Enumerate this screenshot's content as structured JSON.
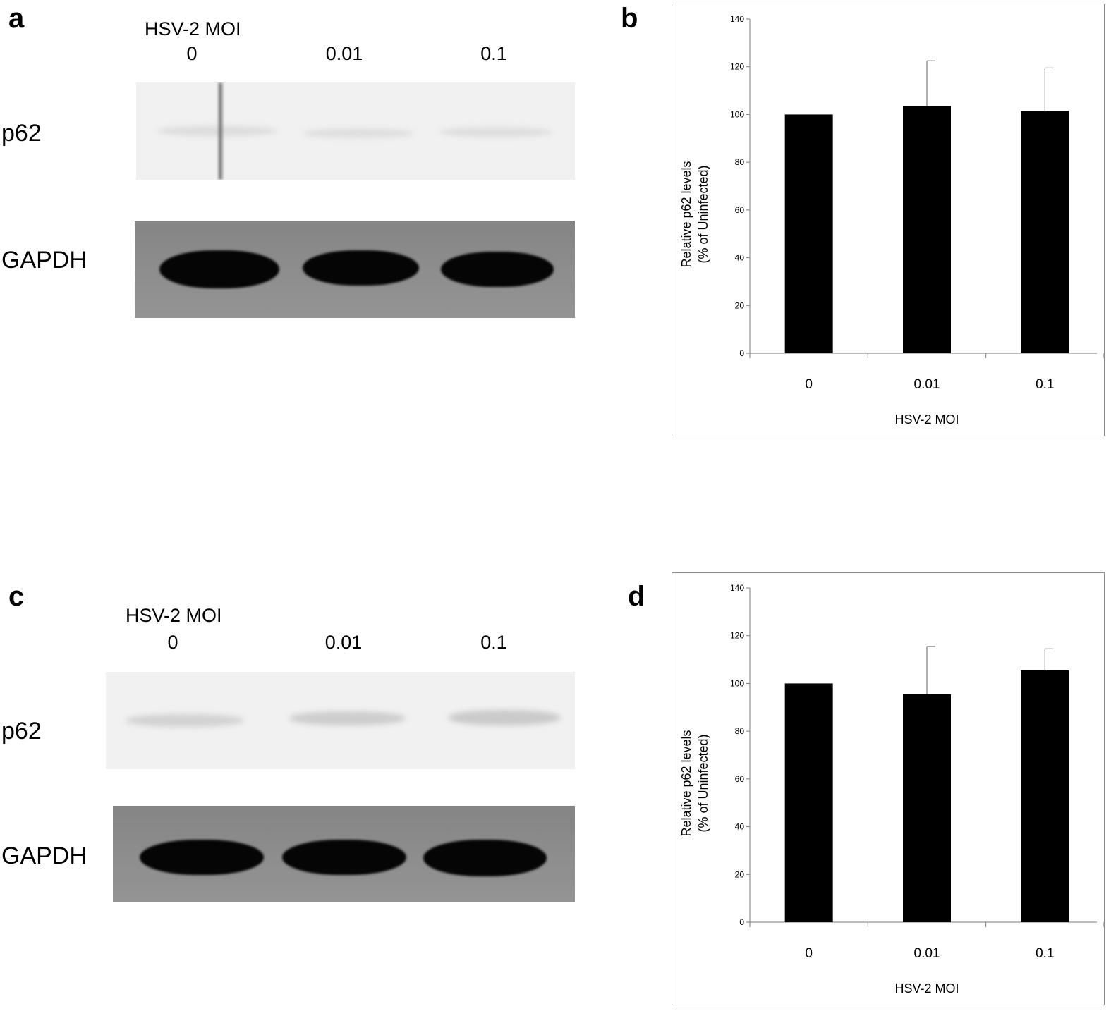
{
  "panels": {
    "a": {
      "letter": "a"
    },
    "b": {
      "letter": "b"
    },
    "c": {
      "letter": "c"
    },
    "d": {
      "letter": "d"
    }
  },
  "blot_a": {
    "header": "HSV-2 MOI",
    "lanes": [
      "0",
      "0.01",
      "0.1"
    ],
    "rows": [
      "p62",
      "GAPDH"
    ]
  },
  "blot_c": {
    "header": "HSV-2 MOI",
    "lanes": [
      "0",
      "0.01",
      "0.1"
    ],
    "rows": [
      "p62",
      "GAPDH"
    ]
  },
  "chart_data": [
    {
      "panel": "b",
      "type": "bar",
      "categories": [
        "0",
        "0.01",
        "0.1"
      ],
      "values": [
        100,
        103.5,
        101.5
      ],
      "error_upper": [
        0,
        19,
        18
      ],
      "ylabel_line1": "Relative p62 levels",
      "ylabel_line2": "(% of Uninfected)",
      "xlabel": "HSV-2 MOI",
      "ylim": [
        0,
        140
      ],
      "yticks": [
        0,
        20,
        40,
        60,
        80,
        100,
        120,
        140
      ],
      "grid": false,
      "bar_color": "#000000"
    },
    {
      "panel": "d",
      "type": "bar",
      "categories": [
        "0",
        "0.01",
        "0.1"
      ],
      "values": [
        100,
        95.5,
        105.5
      ],
      "error_upper": [
        0,
        20,
        9
      ],
      "ylabel_line1": "Relative p62 levels",
      "ylabel_line2": "(% of Uninfected)",
      "xlabel": "HSV-2 MOI",
      "ylim": [
        0,
        140
      ],
      "yticks": [
        0,
        20,
        40,
        60,
        80,
        100,
        120,
        140
      ],
      "grid": false,
      "bar_color": "#000000"
    }
  ]
}
